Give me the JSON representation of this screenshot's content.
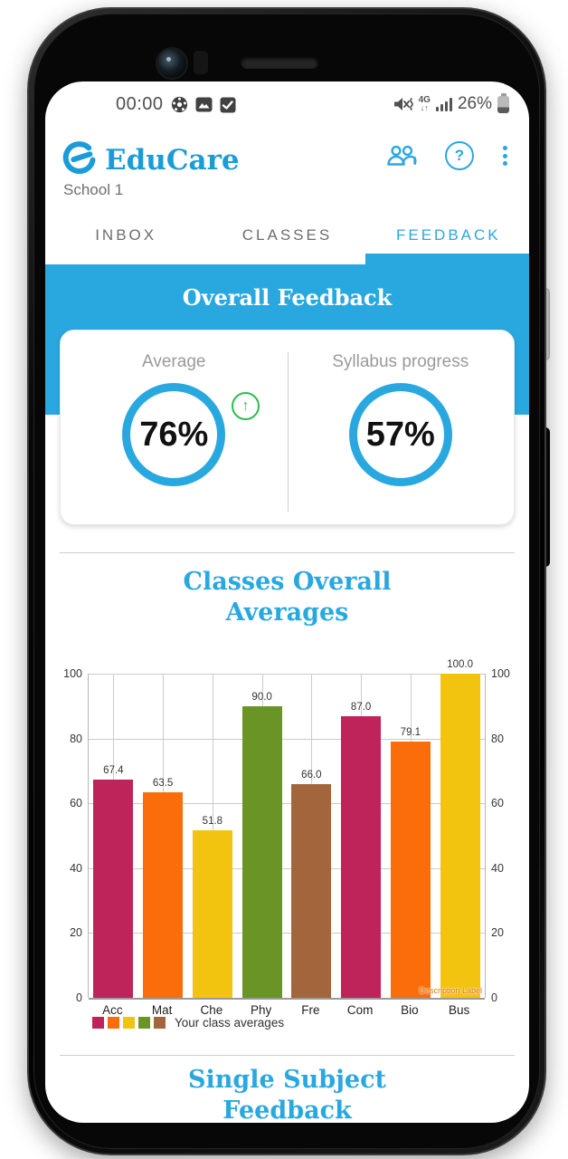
{
  "statusbar": {
    "time": "00:00",
    "battery_percent": "26%",
    "network_label": "4G",
    "left_icons": [
      "ball-icon",
      "image-icon",
      "check-icon"
    ],
    "right_icons": [
      "volume-muted-icon",
      "network-4g-icon",
      "signal-strength-icon",
      "battery-icon"
    ]
  },
  "header": {
    "app_name": "EduCare",
    "subtitle": "School 1",
    "action_icons": [
      "people-icon",
      "help-icon",
      "overflow-menu-icon"
    ]
  },
  "tabs": [
    {
      "label": "INBOX",
      "active": false
    },
    {
      "label": "CLASSES",
      "active": false
    },
    {
      "label": "FEEDBACK",
      "active": true
    }
  ],
  "banner": {
    "title": "Overall Feedback"
  },
  "summary_card": {
    "left": {
      "label": "Average",
      "value": "76%",
      "trend": "up",
      "trend_glyph": "↑"
    },
    "right": {
      "label": "Syllabus progress",
      "value": "57%"
    }
  },
  "section_titles": {
    "chart": "Classes Overall Averages",
    "bottom": "Single Subject Feedback"
  },
  "colors": {
    "accent_blue": "#29a8e0",
    "logo_blue": "#1b9cd8",
    "trend_green": "#2ebd4f"
  },
  "chart_data": {
    "type": "bar",
    "title": "Classes Overall Averages",
    "categories": [
      "Acc",
      "Mat",
      "Che",
      "Phy",
      "Fre",
      "Com",
      "Bio",
      "Bus"
    ],
    "values": [
      67.4,
      63.5,
      51.8,
      90.0,
      66.0,
      87.0,
      79.1,
      100.0
    ],
    "value_labels": [
      "67.4",
      "63.5",
      "51.8",
      "90.0",
      "66.0",
      "87.0",
      "79.1",
      "100.0"
    ],
    "bar_colors": [
      "#be2459",
      "#fb6d0a",
      "#f2c30f",
      "#6b9427",
      "#a3653b",
      "#be2459",
      "#fb6d0a",
      "#f2c30f"
    ],
    "ylim": [
      0,
      100
    ],
    "yticks": [
      0,
      20,
      40,
      60,
      80,
      100
    ],
    "grid": true,
    "xlabel": "",
    "ylabel": "",
    "legend": {
      "label": "Your class averages",
      "colors": [
        "#be2459",
        "#fb6d0a",
        "#f2c30f",
        "#6b9427",
        "#a3653b"
      ],
      "position": "bottom-left"
    },
    "description_label": "Description Label"
  }
}
